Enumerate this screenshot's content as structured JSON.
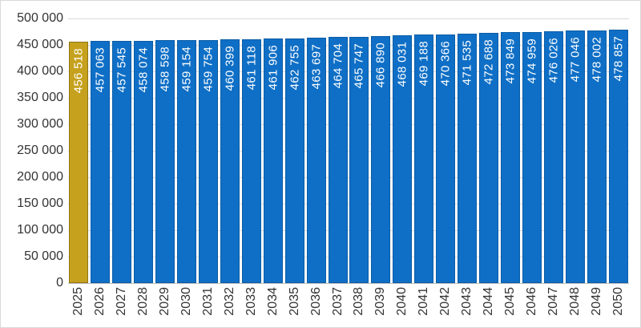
{
  "chart_data": {
    "type": "bar",
    "title": "",
    "xlabel": "",
    "ylabel": "",
    "legend": "none",
    "grid": true,
    "ylim": [
      0,
      500000
    ],
    "categories": [
      "2025",
      "2026",
      "2027",
      "2028",
      "2029",
      "2030",
      "2031",
      "2032",
      "2033",
      "2034",
      "2035",
      "2036",
      "2037",
      "2038",
      "2039",
      "2040",
      "2041",
      "2042",
      "2043",
      "2044",
      "2045",
      "2046",
      "2047",
      "2048",
      "2049",
      "2050"
    ],
    "values": [
      456518,
      457063,
      457545,
      458074,
      458598,
      459154,
      459754,
      460399,
      461118,
      461906,
      462755,
      463697,
      464704,
      465747,
      466890,
      468031,
      469188,
      470366,
      471535,
      472688,
      473849,
      474959,
      476026,
      477046,
      478002,
      478857
    ],
    "value_labels": [
      "456 518",
      "457 063",
      "457 545",
      "458 074",
      "458 598",
      "459 154",
      "459 754",
      "460 399",
      "461 118",
      "461 906",
      "462 755",
      "463 697",
      "464 704",
      "465 747",
      "466 890",
      "468 031",
      "469 188",
      "470 366",
      "471 535",
      "472 688",
      "473 849",
      "474 959",
      "476 026",
      "477 046",
      "478 002",
      "478 857"
    ],
    "data_label_position": "inside-end-vertical",
    "highlight_index": 0,
    "y_axis": {
      "tick_values": [
        0,
        50000,
        100000,
        150000,
        200000,
        250000,
        300000,
        350000,
        400000,
        450000,
        500000
      ],
      "tick_labels": [
        "0",
        "50 000",
        "100 000",
        "150 000",
        "200 000",
        "250 000",
        "300 000",
        "350 000",
        "400 000",
        "450 000",
        "500 000"
      ]
    },
    "colors": {
      "bar_fill": "#0F6FC6",
      "bar_border": "#0B5CA6",
      "highlight_fill": "#C6A11D",
      "highlight_border": "#8F7512",
      "gridline": "#D9D9D9",
      "axis_line": "#BFBFBF",
      "axis_text": "#333333",
      "data_label_text": "#FFFFFF"
    }
  }
}
